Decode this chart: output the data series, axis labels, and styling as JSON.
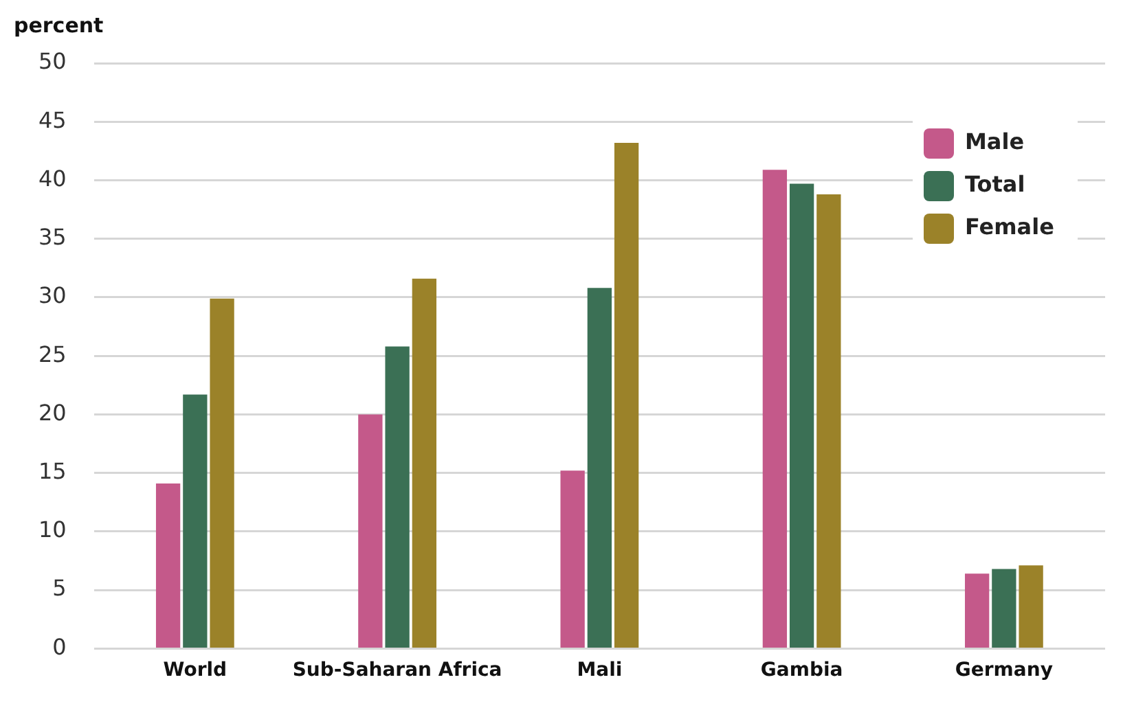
{
  "chart_data": {
    "type": "bar",
    "ylabel": "percent",
    "categories": [
      "World",
      "Sub-Saharan Africa",
      "Mali",
      "Gambia",
      "Germany"
    ],
    "series": [
      {
        "name": "Male",
        "color": "#c4598a",
        "values": [
          14.1,
          20.0,
          15.2,
          40.9,
          6.4
        ]
      },
      {
        "name": "Total",
        "color": "#3b7055",
        "values": [
          21.7,
          25.8,
          30.8,
          39.7,
          6.8
        ]
      },
      {
        "name": "Female",
        "color": "#9b8229",
        "values": [
          29.9,
          31.6,
          43.2,
          38.8,
          7.1
        ]
      }
    ],
    "ylim": [
      0,
      50
    ],
    "yticks": [
      0,
      5,
      10,
      15,
      20,
      25,
      30,
      35,
      40,
      45,
      50
    ],
    "grid": "y",
    "legend": "top right"
  }
}
